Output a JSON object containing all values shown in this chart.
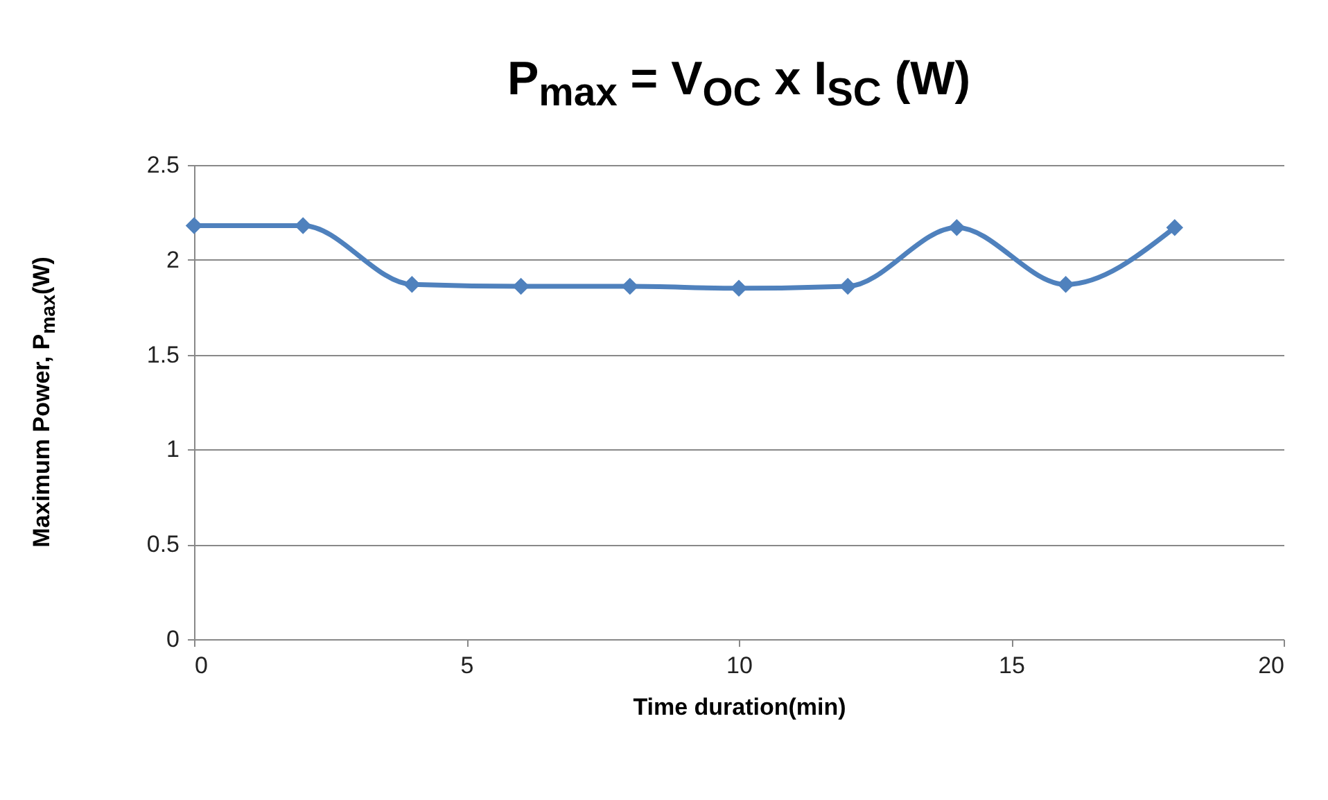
{
  "chart_data": {
    "type": "line",
    "title": "P$_{max}$ =  V$_{OC}$ x I$_{SC}$ (W)",
    "xlabel": "Time duration(min)",
    "ylabel": "Maximum Power, P$_{max}$(W)",
    "x": [
      0,
      2,
      4,
      6,
      8,
      10,
      12,
      14,
      16,
      18
    ],
    "series": [
      {
        "color": "#4f81bd",
        "values": [
          2.18,
          2.18,
          1.87,
          1.86,
          1.86,
          1.85,
          1.86,
          2.17,
          1.87,
          2.17
        ]
      }
    ],
    "xlim": [
      0,
      20
    ],
    "xticks": [
      0,
      5,
      10,
      15,
      20
    ],
    "ylim": [
      0,
      2.5
    ],
    "yticks": [
      0,
      0.5,
      1,
      1.5,
      2,
      2.5
    ],
    "grid": "y",
    "marker": "diamond",
    "line_style": "solid"
  }
}
